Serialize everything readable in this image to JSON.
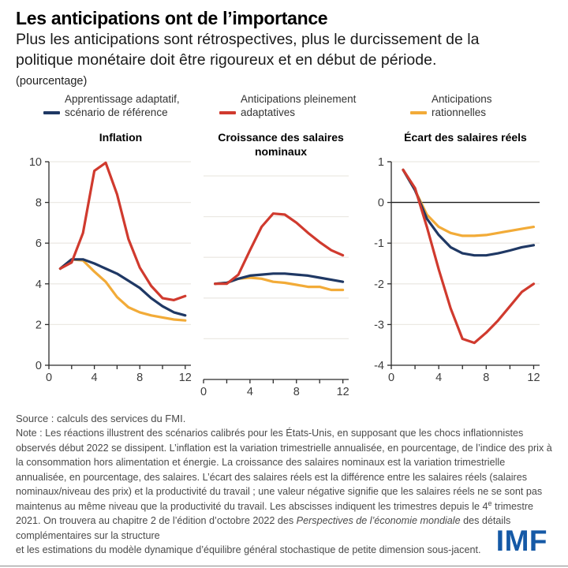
{
  "header": {
    "title": "Les anticipations ont de l’importance",
    "subtitle": "Plus les anticipations sont rétrospectives, plus le durcissement de la politique monétaire doit être rigoureux et en début de période.",
    "unit": "(pourcentage)"
  },
  "colors": {
    "blue": "#1f3864",
    "red": "#d03a2e",
    "yellow": "#f2ab38",
    "grid": "#ece9e4",
    "axis": "#2b2b2b",
    "zero_line": "#1a1a1a",
    "logo_blue": "#1559a6"
  },
  "legend": {
    "items": [
      {
        "line1": "Apprentissage adaptatif,",
        "line2": "scénario de référence",
        "color": "#1f3864"
      },
      {
        "line1": "Anticipations pleinement",
        "line2": "adaptatives",
        "color": "#d03a2e"
      },
      {
        "line1": "Anticipations",
        "line2": "rationnelles",
        "color": "#f2ab38"
      }
    ]
  },
  "chart_data": [
    {
      "type": "line",
      "title": "Inflation",
      "x": [
        1,
        2,
        3,
        4,
        5,
        6,
        7,
        8,
        9,
        10,
        11,
        12
      ],
      "xlim": [
        0,
        12.5
      ],
      "xticks": [
        0,
        2,
        4,
        6,
        8,
        10,
        12
      ],
      "xtick_labels": [
        0,
        4,
        8,
        12
      ],
      "ylim": [
        0,
        10
      ],
      "ytick_labels": [
        0,
        2,
        4,
        6,
        8,
        10
      ],
      "gridlines": [
        2,
        4,
        6,
        8,
        10
      ],
      "y_axis": true,
      "zero_line": false,
      "series": [
        {
          "key": "rationnelles",
          "name": "Anticipations rationnelles",
          "color": "#f2ab38",
          "values": [
            4.75,
            5.2,
            5.15,
            4.6,
            4.1,
            3.35,
            2.85,
            2.6,
            2.45,
            2.35,
            2.25,
            2.2
          ]
        },
        {
          "key": "reference",
          "name": "Apprentissage adaptatif, scénario de référence",
          "color": "#1f3864",
          "values": [
            4.75,
            5.2,
            5.2,
            5.0,
            4.75,
            4.5,
            4.15,
            3.8,
            3.3,
            2.9,
            2.6,
            2.45
          ]
        },
        {
          "key": "adaptatives",
          "name": "Anticipations pleinement adaptatives",
          "color": "#d03a2e",
          "values": [
            4.75,
            5.05,
            6.5,
            9.55,
            9.95,
            8.4,
            6.2,
            4.8,
            3.9,
            3.3,
            3.2,
            3.4
          ]
        }
      ]
    },
    {
      "type": "line",
      "title": "Croissance des salaires nominaux",
      "x": [
        1,
        2,
        3,
        4,
        5,
        6,
        7,
        8,
        9,
        10,
        11,
        12
      ],
      "xlim": [
        0,
        12.5
      ],
      "xticks": [
        0,
        2,
        4,
        6,
        8,
        10,
        12
      ],
      "xtick_labels": [
        0,
        4,
        8,
        12
      ],
      "ylim": [
        0,
        10
      ],
      "ytick_labels": [],
      "gridlines": [
        2,
        4,
        6,
        8,
        10
      ],
      "y_axis": false,
      "zero_line": false,
      "series": [
        {
          "key": "rationnelles",
          "name": "Anticipations rationnelles",
          "color": "#f2ab38",
          "values": [
            4.7,
            4.75,
            4.95,
            5.0,
            4.95,
            4.8,
            4.75,
            4.65,
            4.55,
            4.55,
            4.4,
            4.4
          ]
        },
        {
          "key": "reference",
          "name": "Apprentissage adaptatif, scénario de référence",
          "color": "#1f3864",
          "values": [
            4.7,
            4.75,
            4.95,
            5.1,
            5.15,
            5.2,
            5.2,
            5.15,
            5.1,
            5.0,
            4.9,
            4.8
          ]
        },
        {
          "key": "adaptatives",
          "name": "Anticipations pleinement adaptatives",
          "color": "#d03a2e",
          "values": [
            4.7,
            4.7,
            5.15,
            6.35,
            7.5,
            8.15,
            8.1,
            7.7,
            7.2,
            6.75,
            6.35,
            6.1
          ]
        }
      ]
    },
    {
      "type": "line",
      "title": "Écart des salaires réels",
      "x": [
        1,
        2,
        3,
        4,
        5,
        6,
        7,
        8,
        9,
        10,
        11,
        12
      ],
      "xlim": [
        0,
        12.5
      ],
      "xticks": [
        0,
        2,
        4,
        6,
        8,
        10,
        12
      ],
      "xtick_labels": [
        0,
        4,
        8,
        12
      ],
      "ylim": [
        -4,
        1
      ],
      "ytick_labels": [
        1,
        0,
        -1,
        -2,
        -3,
        -4
      ],
      "gridlines": [
        1,
        -1,
        -2,
        -3
      ],
      "y_axis": true,
      "zero_line": true,
      "series": [
        {
          "key": "rationnelles",
          "name": "Anticipations rationnelles",
          "color": "#f2ab38",
          "values": [
            0.8,
            0.3,
            -0.3,
            -0.6,
            -0.75,
            -0.82,
            -0.82,
            -0.8,
            -0.75,
            -0.7,
            -0.65,
            -0.6
          ]
        },
        {
          "key": "reference",
          "name": "Apprentissage adaptatif, scénario de référence",
          "color": "#1f3864",
          "values": [
            0.8,
            0.3,
            -0.4,
            -0.8,
            -1.1,
            -1.25,
            -1.3,
            -1.3,
            -1.25,
            -1.18,
            -1.1,
            -1.05
          ]
        },
        {
          "key": "adaptatives",
          "name": "Anticipations pleinement adaptatives",
          "color": "#d03a2e",
          "values": [
            0.8,
            0.35,
            -0.6,
            -1.65,
            -2.6,
            -3.35,
            -3.45,
            -3.2,
            -2.9,
            -2.55,
            -2.2,
            -2.0
          ]
        }
      ]
    }
  ],
  "footer": {
    "source": "Source : calculs des services du FMI.",
    "note_segments": [
      {
        "style": "n",
        "text": "Note : Les réactions illustrent des scénarios calibrés pour les États-Unis, en supposant que les chocs inflationnistes observés début 2022 se dissipent. L’inflation est la variation trimestrielle annualisée, en pourcentage, de l’indice des prix à la consommation hors alimentation et énergie. La croissance des salaires nominaux est la variation trimestrielle annualisée, en pourcentage, des salaires. L’écart des salaires réels est la différence entre les salaires réels (salaires nominaux/niveau des prix) et la productivité du travail ; une valeur négative signifie que les salaires réels ne se sont pas maintenus au même niveau que la productivité du travail. Les abscisses indiquent les trimestres depuis le 4"
      },
      {
        "style": "sup",
        "text": "e"
      },
      {
        "style": "n",
        "text": " trimestre 2021. On trouvera au chapitre 2 de l’édition d’octobre 2022 des "
      },
      {
        "style": "i",
        "text": "Perspectives de l’économie mondiale"
      },
      {
        "style": "n",
        "text": " des détails complémentaires sur la structure"
      },
      {
        "style": "br",
        "text": ""
      },
      {
        "style": "n",
        "text": "et les estimations du modèle dynamique d’équilibre général stochastique de petite dimension sous-jacent."
      }
    ],
    "logo": "IMF"
  }
}
